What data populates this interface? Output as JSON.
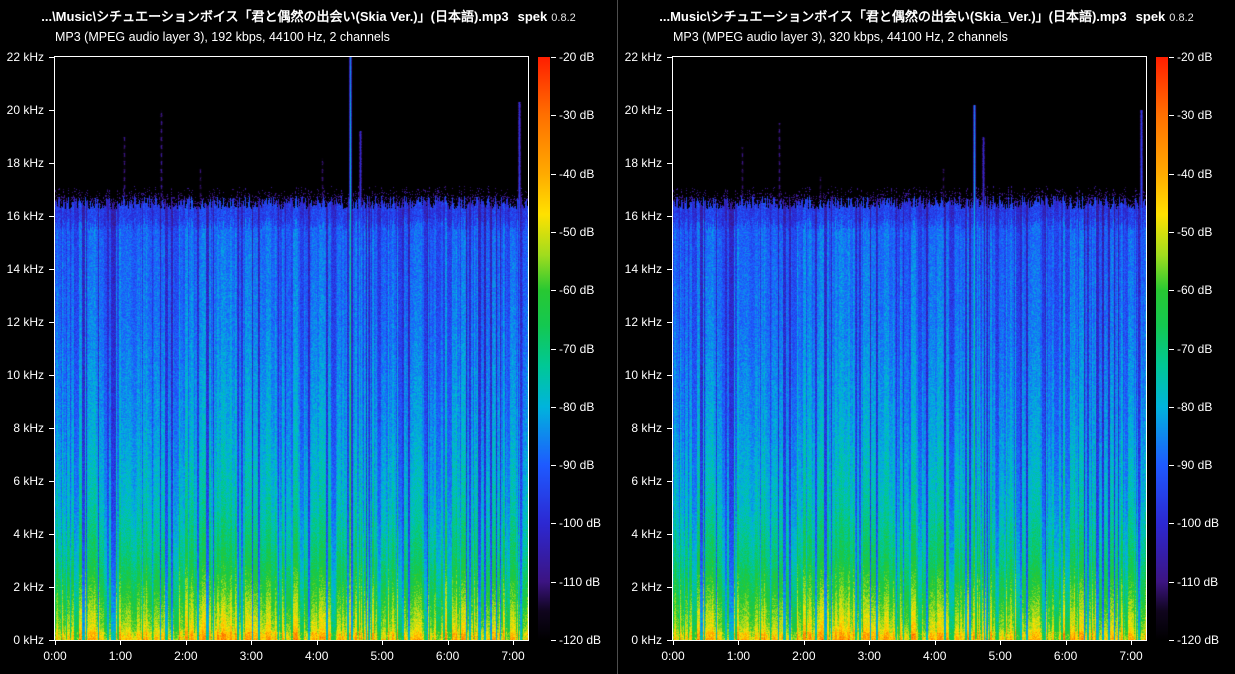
{
  "app": {
    "name": "spek",
    "version": "0.8.2"
  },
  "palette": [
    [
      0.0,
      "#000000"
    ],
    [
      0.05,
      "#10051e"
    ],
    [
      0.1,
      "#3c1482"
    ],
    [
      0.2,
      "#2c28d2"
    ],
    [
      0.3,
      "#1e5aff"
    ],
    [
      0.4,
      "#00b4dc"
    ],
    [
      0.47,
      "#00c896"
    ],
    [
      0.54,
      "#14c850"
    ],
    [
      0.6,
      "#28c832"
    ],
    [
      0.66,
      "#a0dc1e"
    ],
    [
      0.73,
      "#ffe100"
    ],
    [
      0.8,
      "#ffaa00"
    ],
    [
      0.9,
      "#ff7000"
    ],
    [
      1.0,
      "#ff1e00"
    ]
  ],
  "panels": [
    {
      "title_file": "...\\Music\\シチュエーションボイス「君と偶然の出会い(Skia Ver.)」(日本語).mp3",
      "subtitle": "MP3 (MPEG audio layer 3), 192 kbps, 44100 Hz, 2 channels",
      "freq_labels": [
        "22 kHz",
        "20 kHz",
        "18 kHz",
        "16 kHz",
        "14 kHz",
        "12 kHz",
        "10 kHz",
        "8 kHz",
        "6 kHz",
        "4 kHz",
        "2 kHz",
        "0 kHz"
      ],
      "db_labels": [
        "-20 dB",
        "-30 dB",
        "-40 dB",
        "-50 dB",
        "-60 dB",
        "-70 dB",
        "-80 dB",
        "-90 dB",
        "-100 dB",
        "-110 dB",
        "-120 dB"
      ],
      "time_labels": [
        "0:00",
        "1:00",
        "2:00",
        "3:00",
        "4:00",
        "5:00",
        "6:00",
        "7:00"
      ],
      "spectrogram": {
        "type": "heatmap",
        "f_max_khz": 22,
        "cutoff_khz": 16.5,
        "db_max": -20,
        "db_min": -120,
        "seed": 1337,
        "spikes": [
          {
            "t": 0.624,
            "f_top_khz": 22.0,
            "strength": 0.7
          },
          {
            "t": 0.645,
            "f_top_khz": 19.2,
            "strength": 0.4
          },
          {
            "t": 0.146,
            "f_top_khz": 19.0,
            "strength": 0.2
          },
          {
            "t": 0.224,
            "f_top_khz": 20.0,
            "strength": 0.22
          },
          {
            "t": 0.307,
            "f_top_khz": 17.8,
            "strength": 0.17
          },
          {
            "t": 0.565,
            "f_top_khz": 18.2,
            "strength": 0.17
          },
          {
            "t": 0.98,
            "f_top_khz": 20.3,
            "strength": 0.45
          }
        ]
      }
    },
    {
      "title_file": "...Music\\シチュエーションボイス「君と偶然の出会い(Skia_Ver.)」(日本語).mp3",
      "subtitle": "MP3 (MPEG audio layer 3), 320 kbps, 44100 Hz, 2 channels",
      "freq_labels": [
        "22 kHz",
        "20 kHz",
        "18 kHz",
        "16 kHz",
        "14 kHz",
        "12 kHz",
        "10 kHz",
        "8 kHz",
        "6 kHz",
        "4 kHz",
        "2 kHz",
        "0 kHz"
      ],
      "db_labels": [
        "-20 dB",
        "-30 dB",
        "-40 dB",
        "-50 dB",
        "-60 dB",
        "-70 dB",
        "-80 dB",
        "-90 dB",
        "-100 dB",
        "-110 dB",
        "-120 dB"
      ],
      "time_labels": [
        "0:00",
        "1:00",
        "2:00",
        "3:00",
        "4:00",
        "5:00",
        "6:00",
        "7:00"
      ],
      "spectrogram": {
        "type": "heatmap",
        "f_max_khz": 22,
        "cutoff_khz": 16.5,
        "db_max": -20,
        "db_min": -120,
        "seed": 1337,
        "spikes": [
          {
            "t": 0.636,
            "f_top_khz": 20.2,
            "strength": 0.68
          },
          {
            "t": 0.656,
            "f_top_khz": 19.0,
            "strength": 0.38
          },
          {
            "t": 0.146,
            "f_top_khz": 18.6,
            "strength": 0.18
          },
          {
            "t": 0.225,
            "f_top_khz": 19.5,
            "strength": 0.2
          },
          {
            "t": 0.31,
            "f_top_khz": 17.5,
            "strength": 0.15
          },
          {
            "t": 0.57,
            "f_top_khz": 17.8,
            "strength": 0.15
          },
          {
            "t": 0.99,
            "f_top_khz": 20.0,
            "strength": 0.5
          }
        ]
      }
    }
  ]
}
